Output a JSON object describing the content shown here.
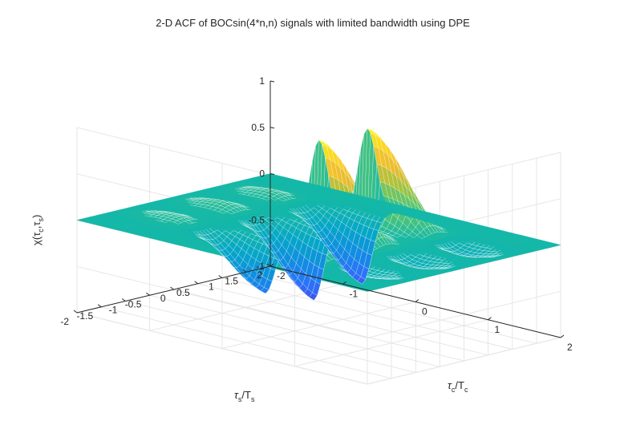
{
  "chart_data": {
    "type": "surface",
    "title": "2-D ACF of BOCsin(4*n,n) signals with limited bandwidth using DPE",
    "xlabel": "τs/Ts",
    "ylabel": "τc/Tc",
    "zlabel": "χ(τc,τs)",
    "xlim": [
      -2,
      2
    ],
    "ylim": [
      -2,
      2
    ],
    "zlim": [
      -1,
      1
    ],
    "x_ticks": [
      "2",
      "1.5",
      "1",
      "0.5",
      "0",
      "-0.5",
      "-1",
      "-1.5",
      "-2"
    ],
    "y_ticks": [
      "-2",
      "-1",
      "0",
      "1",
      "2"
    ],
    "z_ticks": [
      "1",
      "0.5",
      "0",
      "-0.5",
      "-1"
    ],
    "grid": true,
    "colormap": "parula",
    "peaks": [
      {
        "tau_s": 1,
        "peak": 1.0,
        "trough": -0.7
      },
      {
        "tau_s": 0,
        "peak": 1.0,
        "trough": -0.75
      },
      {
        "tau_s": -1,
        "peak": 0.75,
        "trough": -0.55
      }
    ],
    "ridge_width_tau_c": 1,
    "ridge_width_tau_s": 0.55
  },
  "labels": {
    "xlabel_main": "τ",
    "xlabel_sub1": "s",
    "xlabel_mid": "/T",
    "xlabel_sub2": "s",
    "ylabel_main": "τ",
    "ylabel_sub1": "c",
    "ylabel_mid": "/T",
    "ylabel_sub2": "c",
    "zlabel_main": "χ(τ",
    "zlabel_sub1": "c",
    "zlabel_mid": ",τ",
    "zlabel_sub2": "s",
    "zlabel_end": ")"
  }
}
